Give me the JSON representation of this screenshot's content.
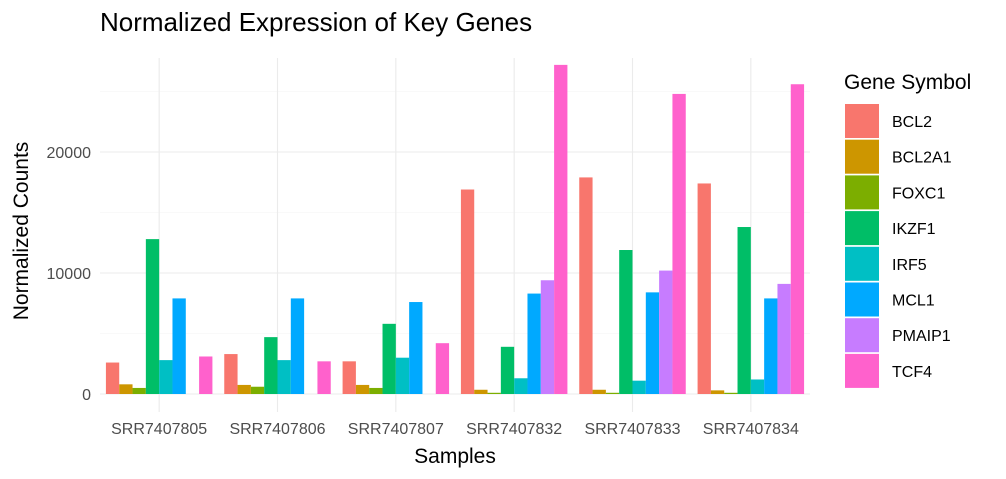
{
  "chart_data": {
    "type": "bar",
    "title": "Normalized Expression of Key Genes",
    "xlabel": "Samples",
    "ylabel": "Normalized Counts",
    "ylim": [
      0,
      28500
    ],
    "yticks": [
      0,
      10000,
      20000
    ],
    "grid": true,
    "legend": {
      "title": "Gene Symbol",
      "position": "right"
    },
    "categories": [
      "SRR7407805",
      "SRR7407806",
      "SRR7407807",
      "SRR7407832",
      "SRR7407833",
      "SRR7407834"
    ],
    "series": [
      {
        "name": "BCL2",
        "color": "#F8766D",
        "values": [
          2600,
          3300,
          2700,
          16900,
          17900,
          17400
        ]
      },
      {
        "name": "BCL2A1",
        "color": "#CD9600",
        "values": [
          800,
          750,
          750,
          350,
          350,
          300
        ]
      },
      {
        "name": "FOXC1",
        "color": "#7CAE00",
        "values": [
          500,
          600,
          500,
          100,
          100,
          100
        ]
      },
      {
        "name": "IKZF1",
        "color": "#00BE67",
        "values": [
          12800,
          4700,
          5800,
          3900,
          11900,
          13800
        ]
      },
      {
        "name": "IRF5",
        "color": "#00BFC4",
        "values": [
          2800,
          2800,
          3000,
          1300,
          1100,
          1200
        ]
      },
      {
        "name": "MCL1",
        "color": "#00A9FF",
        "values": [
          7900,
          7900,
          7600,
          8300,
          8400,
          7900
        ]
      },
      {
        "name": "PMAIP1",
        "color": "#C77CFF",
        "values": [
          0,
          0,
          0,
          9400,
          10200,
          9100
        ]
      },
      {
        "name": "TCF4",
        "color": "#FF61CC",
        "values": [
          3100,
          2700,
          4200,
          27200,
          24800,
          25600
        ]
      }
    ]
  }
}
